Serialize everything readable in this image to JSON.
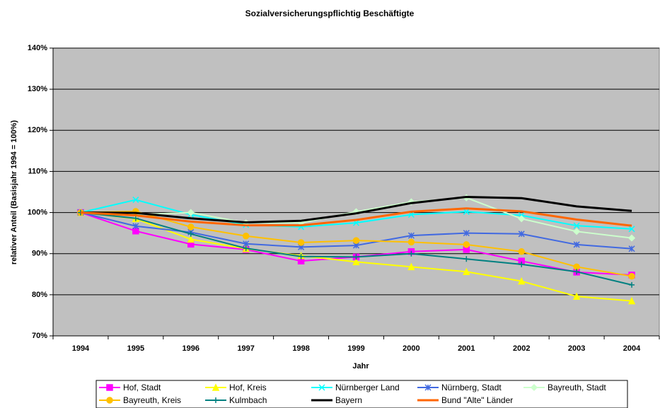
{
  "chart_data": {
    "type": "line",
    "title": "Sozialversicherungspflichtig Beschäftigte",
    "x_label": "Jahr",
    "y_label": "relativer Anteil (Basisjahr 1994 = 100%)",
    "categories": [
      "1994",
      "1995",
      "1996",
      "1997",
      "1998",
      "1999",
      "2000",
      "2001",
      "2002",
      "2003",
      "2004"
    ],
    "ylim": [
      70,
      140
    ],
    "yticks": [
      {
        "value": 70,
        "label": "70%"
      },
      {
        "value": 80,
        "label": "80%"
      },
      {
        "value": 90,
        "label": "90%"
      },
      {
        "value": 100,
        "label": "100%"
      },
      {
        "value": 110,
        "label": "110%"
      },
      {
        "value": 120,
        "label": "120%"
      },
      {
        "value": 130,
        "label": "130%"
      },
      {
        "value": 140,
        "label": "140%"
      }
    ],
    "grid": true,
    "legend": "bottom",
    "series": [
      {
        "name": "Hof, Stadt",
        "color": "#ff00ff",
        "marker": "square",
        "values": [
          100,
          95.5,
          92.3,
          91,
          88.2,
          89.2,
          90.5,
          91,
          88.2,
          85.5,
          84.8
        ]
      },
      {
        "name": "Hof, Kreis",
        "color": "#ffff00",
        "marker": "triangle",
        "values": [
          100,
          98.5,
          93.5,
          91.2,
          89.5,
          88,
          86.8,
          85.6,
          83.3,
          79.6,
          78.5
        ]
      },
      {
        "name": "Nürnberger Land",
        "color": "#00ffff",
        "marker": "x",
        "values": [
          100,
          103.1,
          99.5,
          97,
          96.5,
          97.5,
          99.5,
          100.2,
          99.3,
          96.8,
          96
        ]
      },
      {
        "name": "Nürnberg, Stadt",
        "color": "#4169e1",
        "marker": "asterisk",
        "values": [
          100,
          96.7,
          95.2,
          92.4,
          91.6,
          92,
          94.4,
          95,
          94.8,
          92.2,
          91.2
        ]
      },
      {
        "name": "Bayreuth, Stadt",
        "color": "#ccffcc",
        "marker": "diamond",
        "values": [
          100,
          99.5,
          100,
          97.5,
          97.5,
          100.2,
          102.6,
          103.6,
          98.5,
          95.4,
          93.8
        ]
      },
      {
        "name": "Bayreuth, Kreis",
        "color": "#ffc000",
        "marker": "circle",
        "values": [
          100,
          100.3,
          96.5,
          94.3,
          92.7,
          93.2,
          92.8,
          92.2,
          90.5,
          86.8,
          84.5
        ]
      },
      {
        "name": "Kulmbach",
        "color": "#008080",
        "marker": "plus",
        "values": [
          100,
          98.6,
          94.8,
          91.3,
          89.3,
          89.2,
          90,
          88.7,
          87.4,
          85.6,
          82.4
        ]
      },
      {
        "name": "Bayern",
        "color": "#000000",
        "marker": "none",
        "line_width": 3,
        "values": [
          100,
          99.9,
          98.6,
          97.6,
          98,
          99.8,
          102.3,
          103.8,
          103.5,
          101.5,
          100.4
        ]
      },
      {
        "name": "Bund \"Alte\" Länder",
        "color": "#ff6600",
        "marker": "none",
        "line_width": 3,
        "values": [
          100,
          99.3,
          97.8,
          96.9,
          96.9,
          98.2,
          100.2,
          101,
          100.3,
          98.3,
          96.8
        ]
      }
    ]
  }
}
